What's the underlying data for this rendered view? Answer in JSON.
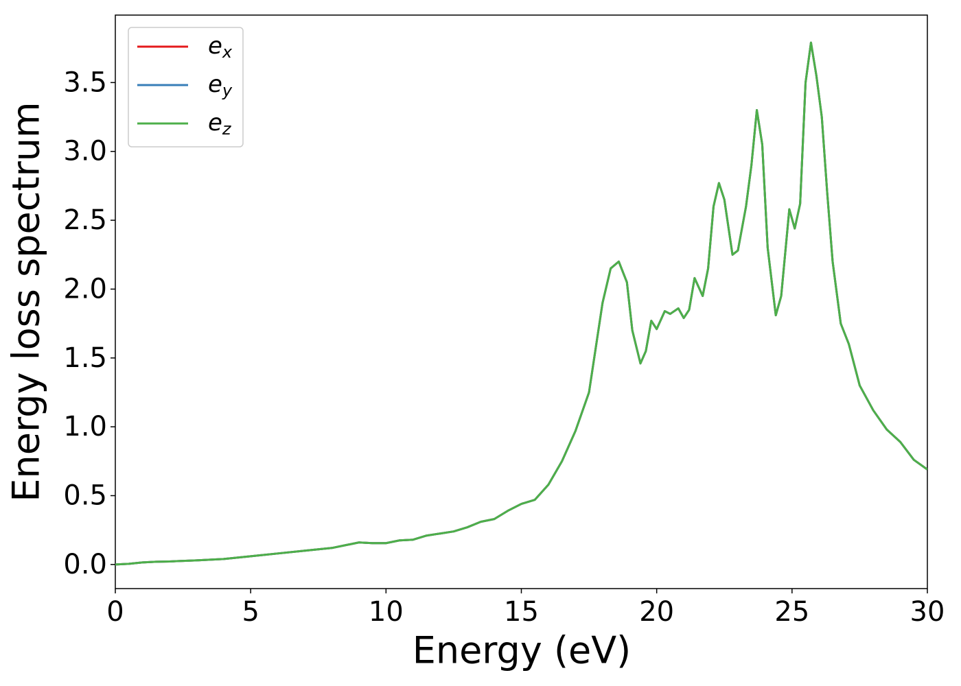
{
  "chart_data": {
    "type": "line",
    "xlabel": "Energy (eV)",
    "ylabel": "Energy loss spectrum",
    "x": [
      0,
      0.5,
      1,
      1.5,
      2,
      3,
      4,
      5,
      6,
      7,
      7.5,
      8,
      8.5,
      9,
      9.5,
      10,
      10.5,
      11,
      11.5,
      12,
      12.5,
      13,
      13.5,
      14,
      14.5,
      15,
      15.5,
      16,
      16.5,
      17,
      17.5,
      18,
      18.3,
      18.6,
      18.9,
      19.1,
      19.4,
      19.6,
      19.8,
      20.0,
      20.3,
      20.5,
      20.8,
      21.0,
      21.2,
      21.4,
      21.7,
      21.9,
      22.1,
      22.3,
      22.5,
      22.8,
      23.0,
      23.3,
      23.5,
      23.7,
      23.9,
      24.1,
      24.4,
      24.6,
      24.9,
      25.1,
      25.3,
      25.5,
      25.7,
      25.9,
      26.1,
      26.3,
      26.5,
      26.8,
      27.1,
      27.5,
      28,
      28.5,
      29,
      29.5,
      30
    ],
    "series": [
      {
        "name": "ex",
        "color": "#e41a1c",
        "values": [
          0,
          0.005,
          0.015,
          0.02,
          0.022,
          0.03,
          0.04,
          0.06,
          0.08,
          0.1,
          0.11,
          0.12,
          0.14,
          0.16,
          0.155,
          0.155,
          0.175,
          0.18,
          0.21,
          0.225,
          0.24,
          0.27,
          0.31,
          0.33,
          0.39,
          0.44,
          0.47,
          0.58,
          0.75,
          0.97,
          1.25,
          1.9,
          2.15,
          2.2,
          2.05,
          1.7,
          1.46,
          1.55,
          1.77,
          1.71,
          1.84,
          1.82,
          1.86,
          1.79,
          1.85,
          2.08,
          1.95,
          2.15,
          2.6,
          2.77,
          2.65,
          2.25,
          2.28,
          2.6,
          2.9,
          3.3,
          3.05,
          2.3,
          1.81,
          1.95,
          2.58,
          2.44,
          2.62,
          3.5,
          3.79,
          3.55,
          3.25,
          2.7,
          2.2,
          1.75,
          1.6,
          1.3,
          1.12,
          0.98,
          0.89,
          0.76,
          0.69
        ]
      },
      {
        "name": "ey",
        "color": "#377eb8",
        "values": [
          0,
          0.005,
          0.015,
          0.02,
          0.022,
          0.03,
          0.04,
          0.06,
          0.08,
          0.1,
          0.11,
          0.12,
          0.14,
          0.16,
          0.155,
          0.155,
          0.175,
          0.18,
          0.21,
          0.225,
          0.24,
          0.27,
          0.31,
          0.33,
          0.39,
          0.44,
          0.47,
          0.58,
          0.75,
          0.97,
          1.25,
          1.9,
          2.15,
          2.2,
          2.05,
          1.7,
          1.46,
          1.55,
          1.77,
          1.71,
          1.84,
          1.82,
          1.86,
          1.79,
          1.85,
          2.08,
          1.95,
          2.15,
          2.6,
          2.77,
          2.65,
          2.25,
          2.28,
          2.6,
          2.9,
          3.3,
          3.05,
          2.3,
          1.81,
          1.95,
          2.58,
          2.44,
          2.62,
          3.5,
          3.79,
          3.55,
          3.25,
          2.7,
          2.2,
          1.75,
          1.6,
          1.3,
          1.12,
          0.98,
          0.89,
          0.76,
          0.69
        ]
      },
      {
        "name": "ez",
        "color": "#4daf4a",
        "values": [
          0,
          0.005,
          0.015,
          0.02,
          0.022,
          0.03,
          0.04,
          0.06,
          0.08,
          0.1,
          0.11,
          0.12,
          0.14,
          0.16,
          0.155,
          0.155,
          0.175,
          0.18,
          0.21,
          0.225,
          0.24,
          0.27,
          0.31,
          0.33,
          0.39,
          0.44,
          0.47,
          0.58,
          0.75,
          0.97,
          1.25,
          1.9,
          2.15,
          2.2,
          2.05,
          1.7,
          1.46,
          1.55,
          1.77,
          1.71,
          1.84,
          1.82,
          1.86,
          1.79,
          1.85,
          2.08,
          1.95,
          2.15,
          2.6,
          2.77,
          2.65,
          2.25,
          2.28,
          2.6,
          2.9,
          3.3,
          3.05,
          2.3,
          1.81,
          1.95,
          2.58,
          2.44,
          2.62,
          3.5,
          3.79,
          3.55,
          3.25,
          2.7,
          2.2,
          1.75,
          1.6,
          1.3,
          1.12,
          0.98,
          0.89,
          0.76,
          0.69
        ]
      }
    ],
    "xlim": [
      0,
      30
    ],
    "xticks": [
      0,
      5,
      10,
      15,
      20,
      25,
      30
    ],
    "ylim": [
      -0.175,
      3.99
    ],
    "yticks": [
      {
        "value": 0,
        "label": "0.0"
      },
      0.5,
      {
        "value": 1,
        "label": "1.0"
      },
      1.5,
      {
        "value": 2,
        "label": "2.0"
      },
      2.5,
      {
        "value": 3,
        "label": "3.0"
      },
      3.5
    ],
    "legend": "upper left",
    "grid": false
  }
}
